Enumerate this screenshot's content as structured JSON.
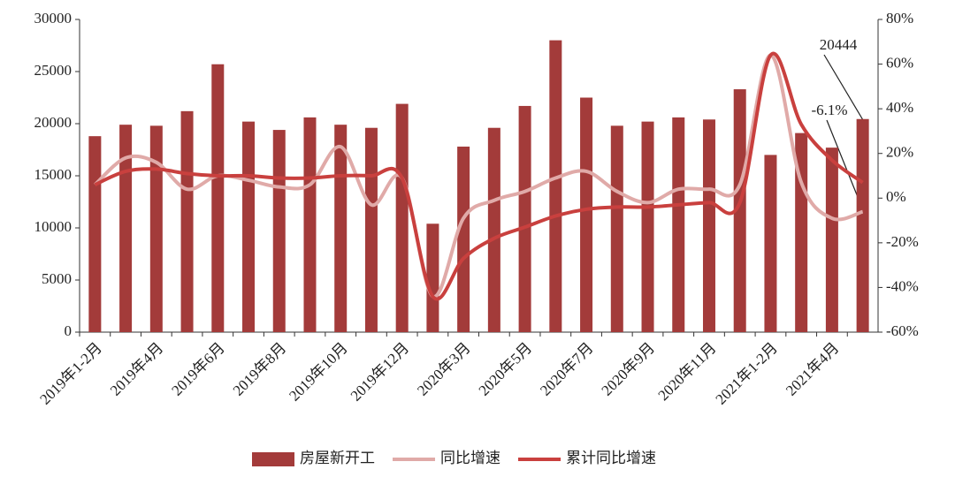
{
  "chart_data": {
    "type": "bar-line",
    "categories": [
      "2019年1-2月",
      null,
      "2019年4月",
      null,
      "2019年6月",
      null,
      "2019年8月",
      null,
      "2019年10月",
      null,
      "2019年12月",
      null,
      "2020年3月",
      null,
      "2020年5月",
      null,
      "2020年7月",
      null,
      "2020年9月",
      null,
      "2020年11月",
      null,
      "2021年1-2月",
      null,
      "2021年4月",
      null
    ],
    "series": [
      {
        "name": "房屋新开工",
        "type": "bar",
        "color": "#a33b3a",
        "values": [
          18800,
          19900,
          19800,
          21200,
          25700,
          20200,
          19400,
          20600,
          19900,
          19600,
          21900,
          10400,
          17800,
          19600,
          21700,
          28000,
          22500,
          19800,
          20200,
          20600,
          20400,
          23300,
          17000,
          19100,
          17700,
          20444
        ]
      },
      {
        "name": "同比增速",
        "type": "line",
        "axis": "y2",
        "color": "#e0aaa8",
        "values": [
          6,
          18,
          16,
          4,
          10,
          8,
          5,
          6,
          23,
          -3,
          9,
          -44,
          -9,
          -1,
          3,
          9,
          12,
          3,
          -2,
          4,
          4,
          6,
          64,
          7,
          -9,
          -6.1
        ]
      },
      {
        "name": "累计同比增速",
        "type": "line",
        "axis": "y2",
        "color": "#c9403e",
        "values": [
          6,
          12,
          13,
          11,
          10,
          10,
          9,
          9,
          10,
          10,
          9,
          -44,
          -27,
          -18,
          -13,
          -8,
          -5,
          -4,
          -4,
          -3,
          -2,
          -2,
          64,
          33,
          17,
          7
        ]
      }
    ],
    "ylim": [
      0,
      30000
    ],
    "yticks": [
      0,
      5000,
      10000,
      15000,
      20000,
      25000,
      30000
    ],
    "y2lim": [
      -60,
      80
    ],
    "y2ticks": [
      {
        "value": -60,
        "label": "-60%"
      },
      {
        "value": -40,
        "label": "-40%"
      },
      {
        "value": -20,
        "label": "-20%"
      },
      {
        "value": 0,
        "label": "0%"
      },
      {
        "value": 20,
        "label": "20%"
      },
      {
        "value": 40,
        "label": "40%"
      },
      {
        "value": 60,
        "label": "60%"
      },
      {
        "value": 80,
        "label": "80%"
      }
    ],
    "annotations": [
      "20444",
      "-6.1%"
    ],
    "legend": "bottom"
  }
}
